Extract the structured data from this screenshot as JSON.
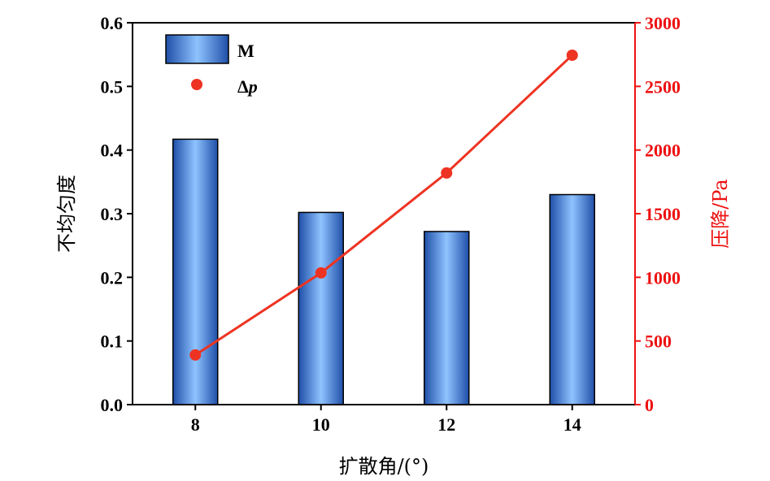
{
  "chart_data": {
    "type": "bar",
    "categories": [
      "8",
      "10",
      "12",
      "14"
    ],
    "x": [
      8,
      10,
      12,
      14
    ],
    "xlabel": "扩散角/(°)",
    "xticks": [
      "8",
      "10",
      "12",
      "14"
    ],
    "ylabel_left": "不均匀度",
    "ylim_left": [
      0,
      0.6
    ],
    "yticks_left": [
      "0.0",
      "0.1",
      "0.2",
      "0.3",
      "0.4",
      "0.5",
      "0.6"
    ],
    "ylabel_right": "压降/Pa",
    "ylim_right": [
      0,
      3000
    ],
    "yticks_right": [
      "0",
      "500",
      "1000",
      "1500",
      "2000",
      "2500",
      "3000"
    ],
    "series": [
      {
        "name": "M",
        "type": "bar",
        "axis": "left",
        "values": [
          0.417,
          0.302,
          0.272,
          0.33
        ]
      },
      {
        "name": "Δp",
        "name_main": "Δ",
        "name_italic": "p",
        "type": "line",
        "axis": "right",
        "values": [
          390,
          1035,
          1820,
          2745
        ]
      }
    ],
    "legend_position": "top-left",
    "colors": {
      "bar_dark": "#1f4fa8",
      "bar_light": "#8ec3ff",
      "bar_edge": "#000000",
      "line": "#ee3322",
      "right_axis": "#ee1111",
      "axis": "#000000"
    },
    "grid": false
  }
}
